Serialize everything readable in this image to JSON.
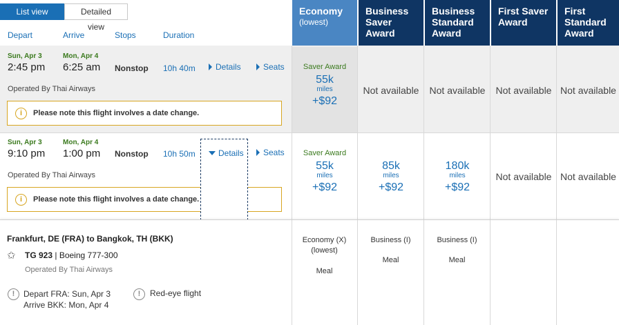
{
  "view_toggle": {
    "list": "List view",
    "detailed": "Detailed view"
  },
  "columns": {
    "depart": "Depart",
    "arrive": "Arrive",
    "stops": "Stops",
    "duration": "Duration"
  },
  "fare_headers": [
    {
      "title": "Economy",
      "sub": "(lowest)"
    },
    {
      "title": "Business Saver Award"
    },
    {
      "title": "Business Standard Award"
    },
    {
      "title": "First Saver Award"
    },
    {
      "title": "First Standard Award"
    }
  ],
  "flights": [
    {
      "depart_date": "Sun, Apr 3",
      "depart_time": "2:45 pm",
      "arrive_date": "Mon, Apr 4",
      "arrive_time": "6:25 am",
      "stops": "Nonstop",
      "duration": "10h 40m",
      "details": "Details",
      "seats": "Seats",
      "operated": "Operated By Thai Airways",
      "notice": "Please note this flight involves a date change.",
      "economy": {
        "label": "Saver Award",
        "miles": "55k",
        "unit": "miles",
        "price": "+$92"
      },
      "business_saver": "Not available",
      "business_standard": "Not available",
      "first_saver": "Not available",
      "first_standard": "Not available"
    },
    {
      "depart_date": "Sun, Apr 3",
      "depart_time": "9:10 pm",
      "arrive_date": "Mon, Apr 4",
      "arrive_time": "1:00 pm",
      "stops": "Nonstop",
      "duration": "10h 50m",
      "details": "Details",
      "seats": "Seats",
      "operated": "Operated By Thai Airways",
      "notice": "Please note this flight involves a date change.",
      "economy": {
        "label": "Saver Award",
        "miles": "55k",
        "unit": "miles",
        "price": "+$92"
      },
      "business_saver": {
        "miles": "85k",
        "unit": "miles",
        "price": "+$92"
      },
      "business_standard": {
        "miles": "180k",
        "unit": "miles",
        "price": "+$92"
      },
      "first_saver": "Not available",
      "first_standard": "Not available"
    }
  ],
  "detail_panel": {
    "route": "Frankfurt, DE (FRA) to Bangkok, TH (BKK)",
    "flight_no": "TG 923",
    "aircraft": "| Boeing 777-300",
    "operated": "Operated By Thai Airways",
    "depart_line": "Depart FRA: Sun, Apr 3",
    "arrive_line": "Arrive BKK: Mon, Apr 4",
    "redeye": "Red-eye flight",
    "cabins": [
      {
        "cabin_line1": "Economy (X)",
        "cabin_line2": "(lowest)",
        "meal": "Meal"
      },
      {
        "cabin_line1": "Business (I)",
        "meal": "Meal"
      },
      {
        "cabin_line1": "Business (I)",
        "meal": "Meal"
      }
    ]
  },
  "colors": {
    "accent": "#1a6fb5",
    "header_dark": "#0f3563",
    "header_economy": "#4a86c3",
    "date_green": "#3b7a1e",
    "warning": "#d7a520"
  }
}
